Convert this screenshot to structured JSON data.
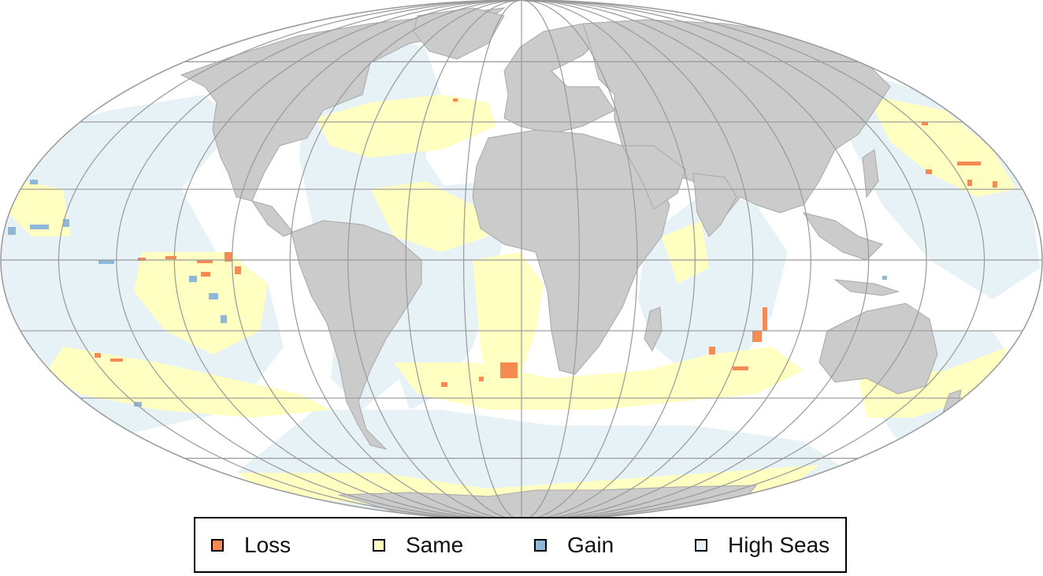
{
  "map": {
    "projection": "Mollweide",
    "colors": {
      "ocean_background": "#ffffff",
      "land": "#cbcbcb",
      "land_border": "#a8a8a8",
      "graticule": "#999999",
      "outline": "#999999"
    }
  },
  "legend": {
    "items": [
      {
        "label": "Loss",
        "color": "#f58a52"
      },
      {
        "label": "Same",
        "color": "#ffffc2"
      },
      {
        "label": "Gain",
        "color": "#8eb8d8"
      },
      {
        "label": "High Seas",
        "color": "#e6f2f6"
      }
    ]
  }
}
